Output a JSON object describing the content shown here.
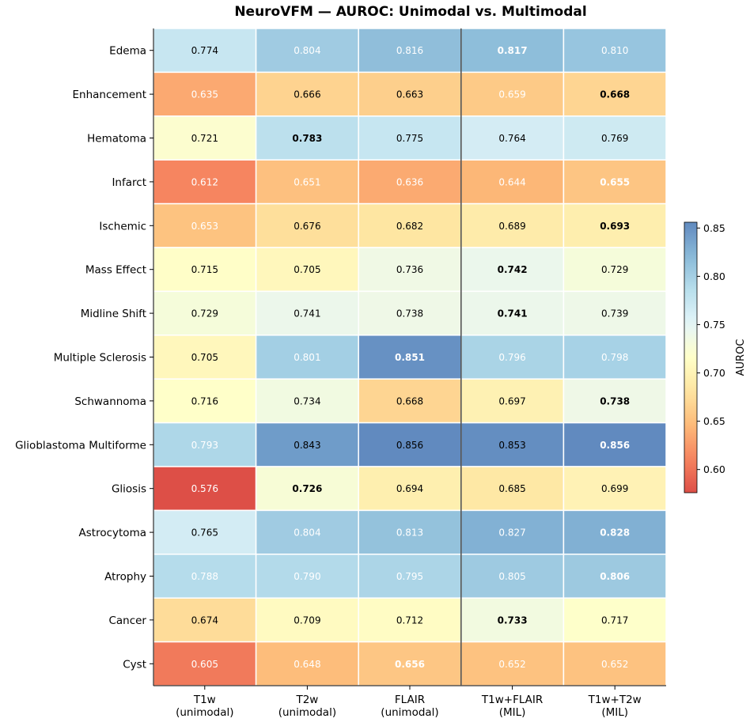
{
  "chart_data": {
    "type": "heatmap",
    "title": "NeuroVFM — AUROC: Unimodal vs. Multimodal",
    "columns": [
      {
        "line1": "T1w",
        "line2": "(unimodal)"
      },
      {
        "line1": "T2w",
        "line2": "(unimodal)"
      },
      {
        "line1": "FLAIR",
        "line2": "(unimodal)"
      },
      {
        "line1": "T1w+FLAIR",
        "line2": "(MIL)"
      },
      {
        "line1": "T1w+T2w",
        "line2": "(MIL)"
      }
    ],
    "rows": [
      "Edema",
      "Enhancement",
      "Hematoma",
      "Infarct",
      "Ischemic",
      "Mass Effect",
      "Midline Shift",
      "Multiple Sclerosis",
      "Schwannoma",
      "Glioblastoma Multiforme",
      "Gliosis",
      "Astrocytoma",
      "Atrophy",
      "Cancer",
      "Cyst"
    ],
    "values": [
      [
        0.774,
        0.804,
        0.816,
        0.817,
        0.81
      ],
      [
        0.635,
        0.666,
        0.663,
        0.659,
        0.668
      ],
      [
        0.721,
        0.783,
        0.775,
        0.764,
        0.769
      ],
      [
        0.612,
        0.651,
        0.636,
        0.644,
        0.655
      ],
      [
        0.653,
        0.676,
        0.682,
        0.689,
        0.693
      ],
      [
        0.715,
        0.705,
        0.736,
        0.742,
        0.729
      ],
      [
        0.729,
        0.741,
        0.738,
        0.741,
        0.739
      ],
      [
        0.705,
        0.801,
        0.851,
        0.796,
        0.798
      ],
      [
        0.716,
        0.734,
        0.668,
        0.697,
        0.738
      ],
      [
        0.793,
        0.843,
        0.856,
        0.853,
        0.856
      ],
      [
        0.576,
        0.726,
        0.694,
        0.685,
        0.699
      ],
      [
        0.765,
        0.804,
        0.813,
        0.827,
        0.828
      ],
      [
        0.788,
        0.79,
        0.795,
        0.805,
        0.806
      ],
      [
        0.674,
        0.709,
        0.712,
        0.733,
        0.717
      ],
      [
        0.605,
        0.648,
        0.656,
        0.652,
        0.652
      ]
    ],
    "labels": [
      [
        "0.774",
        "0.804",
        "0.816",
        "0.817",
        "0.810"
      ],
      [
        "0.635",
        "0.666",
        "0.663",
        "0.659",
        "0.668"
      ],
      [
        "0.721",
        "0.783",
        "0.775",
        "0.764",
        "0.769"
      ],
      [
        "0.612",
        "0.651",
        "0.636",
        "0.644",
        "0.655"
      ],
      [
        "0.653",
        "0.676",
        "0.682",
        "0.689",
        "0.693"
      ],
      [
        "0.715",
        "0.705",
        "0.736",
        "0.742",
        "0.729"
      ],
      [
        "0.729",
        "0.741",
        "0.738",
        "0.741",
        "0.739"
      ],
      [
        "0.705",
        "0.801",
        "0.851",
        "0.796",
        "0.798"
      ],
      [
        "0.716",
        "0.734",
        "0.668",
        "0.697",
        "0.738"
      ],
      [
        "0.793",
        "0.843",
        "0.856",
        "0.853",
        "0.856"
      ],
      [
        "0.576",
        "0.726",
        "0.694",
        "0.685",
        "0.699"
      ],
      [
        "0.765",
        "0.804",
        "0.813",
        "0.827",
        "0.828"
      ],
      [
        "0.788",
        "0.790",
        "0.795",
        "0.805",
        "0.806"
      ],
      [
        "0.674",
        "0.709",
        "0.712",
        "0.733",
        "0.717"
      ],
      [
        "0.605",
        "0.648",
        "0.656",
        "0.652",
        "0.652"
      ]
    ],
    "bold": [
      [
        false,
        false,
        false,
        true,
        false
      ],
      [
        false,
        false,
        false,
        false,
        true
      ],
      [
        false,
        true,
        false,
        false,
        false
      ],
      [
        false,
        false,
        false,
        false,
        true
      ],
      [
        false,
        false,
        false,
        false,
        true
      ],
      [
        false,
        false,
        false,
        true,
        false
      ],
      [
        false,
        false,
        false,
        true,
        false
      ],
      [
        false,
        false,
        true,
        false,
        false
      ],
      [
        false,
        false,
        false,
        false,
        true
      ],
      [
        false,
        false,
        false,
        false,
        true
      ],
      [
        false,
        true,
        false,
        false,
        false
      ],
      [
        false,
        false,
        false,
        false,
        true
      ],
      [
        false,
        false,
        false,
        false,
        true
      ],
      [
        false,
        false,
        false,
        true,
        false
      ],
      [
        false,
        false,
        true,
        false,
        false
      ]
    ],
    "white_text": [
      [
        false,
        true,
        true,
        true,
        true
      ],
      [
        true,
        false,
        false,
        true,
        false
      ],
      [
        false,
        false,
        false,
        false,
        false
      ],
      [
        true,
        true,
        true,
        true,
        true
      ],
      [
        true,
        false,
        false,
        false,
        false
      ],
      [
        false,
        false,
        false,
        false,
        false
      ],
      [
        false,
        false,
        false,
        false,
        false
      ],
      [
        false,
        true,
        true,
        true,
        true
      ],
      [
        false,
        false,
        false,
        false,
        false
      ],
      [
        true,
        false,
        false,
        false,
        true
      ],
      [
        true,
        false,
        false,
        false,
        false
      ],
      [
        false,
        true,
        true,
        true,
        true
      ],
      [
        true,
        true,
        true,
        true,
        true
      ],
      [
        false,
        false,
        false,
        false,
        false
      ],
      [
        true,
        true,
        true,
        true,
        true
      ]
    ],
    "colormap": "RdYlBu",
    "vmin": 0.576,
    "vmax": 0.856,
    "colorbar": {
      "label": "AUROC",
      "ticks": [
        0.6,
        0.65,
        0.7,
        0.75,
        0.8,
        0.85
      ],
      "tick_labels": [
        "0.60",
        "0.65",
        "0.70",
        "0.75",
        "0.80",
        "0.85"
      ]
    },
    "separator_after_column": 3
  }
}
